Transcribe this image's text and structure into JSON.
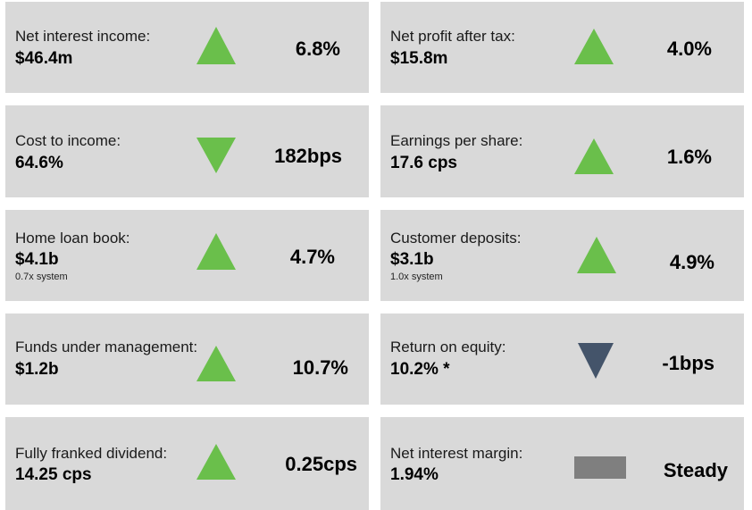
{
  "colors": {
    "card_bg": "#d9d9d9",
    "up": "#6abf4b",
    "down_positive": "#6abf4b",
    "down_negative": "#44546a",
    "steady": "#7f7f7f"
  },
  "metrics": [
    {
      "label": "Net interest income:",
      "value": "$46.4m",
      "note": "",
      "icon": "triangle-up-green-icon",
      "change": "6.8%"
    },
    {
      "label": "Net profit after tax:",
      "value": "$15.8m",
      "note": "",
      "icon": "triangle-up-green-icon",
      "change": "4.0%"
    },
    {
      "label": "Cost to income:",
      "value": "64.6%",
      "note": "",
      "icon": "triangle-down-green-icon",
      "change": "182bps"
    },
    {
      "label": "Earnings per share:",
      "value": "17.6 cps",
      "note": "",
      "icon": "triangle-up-green-icon",
      "change": "1.6%"
    },
    {
      "label": "Home loan book:",
      "value": "$4.1b",
      "note": "0.7x system",
      "icon": "triangle-up-green-icon",
      "change": "4.7%"
    },
    {
      "label": "Customer deposits:",
      "value": "$3.1b",
      "note": "1.0x system",
      "icon": "triangle-up-green-icon",
      "change": "4.9%"
    },
    {
      "label": "Funds under management:",
      "value": "$1.2b",
      "note": "",
      "icon": "triangle-up-green-icon",
      "change": "10.7%"
    },
    {
      "label": "Return on equity:",
      "value": "10.2% *",
      "note": "",
      "icon": "triangle-down-slate-icon",
      "change": "-1bps"
    },
    {
      "label": "Fully franked dividend:",
      "value": "14.25 cps",
      "note": "",
      "icon": "triangle-up-green-icon",
      "change": "0.25cps"
    },
    {
      "label": "Net interest margin:",
      "value": "1.94%",
      "note": "",
      "icon": "steady-bar-icon",
      "change": "Steady"
    }
  ]
}
